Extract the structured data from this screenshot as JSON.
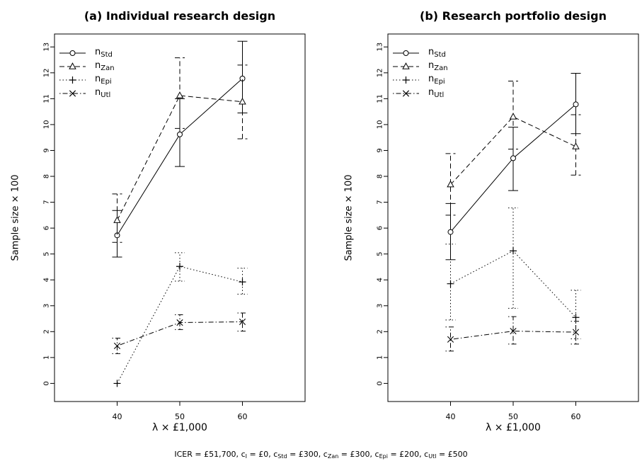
{
  "figure": {
    "caption": {
      "icer": "ICER = £51,700,",
      "costs": [
        {
          "sym": "c",
          "sub": "I",
          "val": "= £0,"
        },
        {
          "sym": "c",
          "sub": "Std",
          "val": "= £300,"
        },
        {
          "sym": "c",
          "sub": "Zan",
          "val": "= £300,"
        },
        {
          "sym": "c",
          "sub": "Epi",
          "val": "= £200,"
        },
        {
          "sym": "c",
          "sub": "Utl",
          "val": "= £500"
        }
      ]
    }
  },
  "chart_data": [
    {
      "type": "line",
      "title": "(a) Individual research design",
      "xlabel": "λ × £1,000",
      "ylabel": "Sample size × 100",
      "x": [
        40,
        50,
        60
      ],
      "xticks": [
        "40",
        "50",
        "60"
      ],
      "yticks": [
        "0",
        "1",
        "2",
        "3",
        "4",
        "5",
        "6",
        "7",
        "8",
        "9",
        "10",
        "11",
        "12",
        "13"
      ],
      "xlim": [
        30,
        70
      ],
      "ylim": [
        -0.7,
        13.5
      ],
      "grid": false,
      "legend": "top-left",
      "series": [
        {
          "name": "n",
          "sub": "Std",
          "marker": "circle",
          "dash": "solid",
          "values": [
            5.72,
            9.62,
            11.78
          ],
          "lower": [
            4.88,
            8.38,
            10.45
          ],
          "upper": [
            6.68,
            11.0,
            13.22
          ]
        },
        {
          "name": "n",
          "sub": "Zan",
          "marker": "triangle",
          "dash": "dashed",
          "values": [
            6.3,
            11.12,
            10.88
          ],
          "lower": [
            5.45,
            9.85,
            9.45
          ],
          "upper": [
            7.32,
            12.58,
            12.3
          ]
        },
        {
          "name": "n",
          "sub": "Epi",
          "marker": "plus",
          "dash": "dotted",
          "values": [
            0.0,
            4.52,
            3.92
          ],
          "lower": null,
          "upper": null
        },
        {
          "name": "n",
          "sub": "Utl",
          "marker": "cross",
          "dash": "dotdash",
          "values": [
            1.45,
            2.35,
            2.38
          ],
          "lower": [
            1.15,
            2.08,
            2.02
          ],
          "upper": [
            1.75,
            2.65,
            2.72
          ]
        }
      ],
      "extra_bars": [
        {
          "x": 50,
          "lower": 3.95,
          "upper": 5.05,
          "dash": "dotted"
        },
        {
          "x": 60,
          "lower": 3.45,
          "upper": 4.45,
          "dash": "dotted"
        }
      ]
    },
    {
      "type": "line",
      "title": "(b) Research portfolio design",
      "xlabel": "λ × £1,000",
      "ylabel": "Sample size × 100",
      "x": [
        40,
        50,
        60
      ],
      "xticks": [
        "40",
        "50",
        "60"
      ],
      "yticks": [
        "0",
        "1",
        "2",
        "3",
        "4",
        "5",
        "6",
        "7",
        "8",
        "9",
        "10",
        "11",
        "12",
        "13"
      ],
      "xlim": [
        30,
        70
      ],
      "ylim": [
        -0.7,
        13.5
      ],
      "grid": false,
      "legend": "top-left",
      "series": [
        {
          "name": "n",
          "sub": "Std",
          "marker": "circle",
          "dash": "solid",
          "values": [
            5.85,
            8.7,
            10.78
          ],
          "lower": [
            4.78,
            7.45,
            9.65
          ],
          "upper": [
            6.95,
            9.9,
            11.98
          ]
        },
        {
          "name": "n",
          "sub": "Zan",
          "marker": "triangle",
          "dash": "dashed",
          "values": [
            7.68,
            10.3,
            9.15
          ],
          "lower": [
            6.5,
            9.05,
            8.05
          ],
          "upper": [
            8.88,
            11.68,
            10.38
          ]
        },
        {
          "name": "n",
          "sub": "Epi",
          "marker": "plus",
          "dash": "dotted",
          "values": [
            3.85,
            5.12,
            2.55
          ],
          "lower": [
            2.45,
            2.9,
            1.72
          ],
          "upper": [
            5.38,
            6.78,
            3.6
          ]
        },
        {
          "name": "n",
          "sub": "Utl",
          "marker": "cross",
          "dash": "dotdash",
          "values": [
            1.7,
            2.02,
            1.98
          ],
          "lower": [
            1.25,
            1.52,
            1.52
          ],
          "upper": [
            2.18,
            2.58,
            2.4
          ]
        }
      ],
      "extra_bars": []
    }
  ]
}
